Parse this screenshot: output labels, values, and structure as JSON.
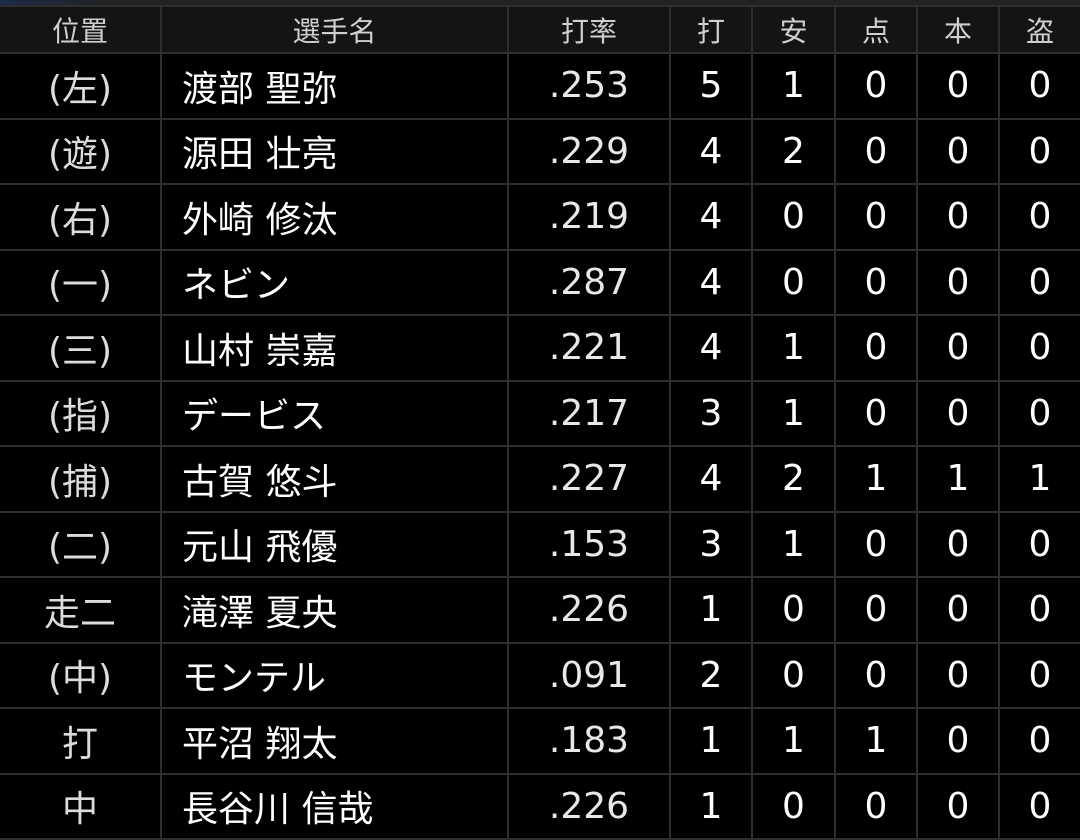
{
  "headers": [
    "位置",
    "選手名",
    "打率",
    "打",
    "安",
    "点",
    "本",
    "盗"
  ],
  "rows": [
    {
      "pos": "(左)",
      "name": "渡部 聖弥",
      "avg": ".253",
      "ab": "5",
      "h": "1",
      "rbi": "0",
      "hr": "0",
      "sb": "0"
    },
    {
      "pos": "(遊)",
      "name": "源田 壮亮",
      "avg": ".229",
      "ab": "4",
      "h": "2",
      "rbi": "0",
      "hr": "0",
      "sb": "0"
    },
    {
      "pos": "(右)",
      "name": "外崎 修汰",
      "avg": ".219",
      "ab": "4",
      "h": "0",
      "rbi": "0",
      "hr": "0",
      "sb": "0"
    },
    {
      "pos": "(一)",
      "name": "ネビン",
      "avg": ".287",
      "ab": "4",
      "h": "0",
      "rbi": "0",
      "hr": "0",
      "sb": "0"
    },
    {
      "pos": "(三)",
      "name": "山村 崇嘉",
      "avg": ".221",
      "ab": "4",
      "h": "1",
      "rbi": "0",
      "hr": "0",
      "sb": "0"
    },
    {
      "pos": "(指)",
      "name": "デービス",
      "avg": ".217",
      "ab": "3",
      "h": "1",
      "rbi": "0",
      "hr": "0",
      "sb": "0"
    },
    {
      "pos": "(捕)",
      "name": "古賀 悠斗",
      "avg": ".227",
      "ab": "4",
      "h": "2",
      "rbi": "1",
      "hr": "1",
      "sb": "1"
    },
    {
      "pos": "(二)",
      "name": "元山 飛優",
      "avg": ".153",
      "ab": "3",
      "h": "1",
      "rbi": "0",
      "hr": "0",
      "sb": "0"
    },
    {
      "pos": "走二",
      "name": "滝澤 夏央",
      "avg": ".226",
      "ab": "1",
      "h": "0",
      "rbi": "0",
      "hr": "0",
      "sb": "0"
    },
    {
      "pos": "(中)",
      "name": "モンテル",
      "avg": ".091",
      "ab": "2",
      "h": "0",
      "rbi": "0",
      "hr": "0",
      "sb": "0"
    },
    {
      "pos": "打",
      "name": "平沼 翔太",
      "avg": ".183",
      "ab": "1",
      "h": "1",
      "rbi": "1",
      "hr": "0",
      "sb": "0"
    },
    {
      "pos": "中",
      "name": "長谷川 信哉",
      "avg": ".226",
      "ab": "1",
      "h": "0",
      "rbi": "0",
      "hr": "0",
      "sb": "0"
    }
  ]
}
